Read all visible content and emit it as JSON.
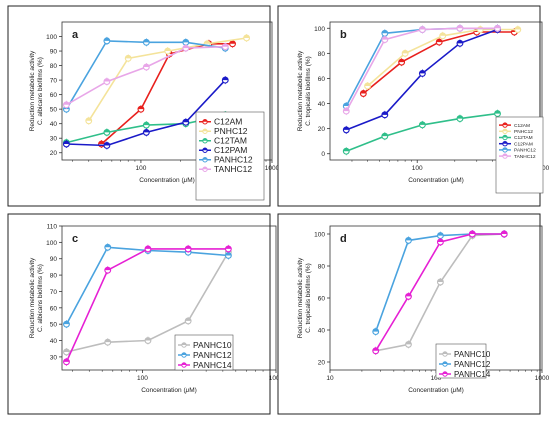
{
  "chart_data": [
    {
      "type": "line",
      "panel_label": "a",
      "xlabel_main": "Concentration (",
      "xlabel_mu": "μ",
      "xlabel_unit": "M)",
      "ylabel_line1": "Reduction metabolic activity",
      "ylabel_line2": "C. albicans biofilms (%)",
      "x_scale": "log",
      "xlim": [
        25,
        1000
      ],
      "ylim": [
        15,
        110
      ],
      "y_ticks": [
        20,
        30,
        40,
        50,
        60,
        70,
        80,
        90,
        100
      ],
      "x_ticks": [
        100,
        1000
      ],
      "x_tick_labels": [
        "100",
        "1000"
      ],
      "legend_position": "center-right",
      "series": [
        {
          "name": "C12AM",
          "color": "#e8201d",
          "x": [
            50,
            100,
            165,
            330,
            500
          ],
          "y": [
            26,
            50,
            88,
            95,
            95
          ]
        },
        {
          "name": "PNHC12",
          "color": "#f4e39a",
          "x": [
            40,
            80,
            160,
            320,
            640
          ],
          "y": [
            42,
            85,
            90,
            95,
            99
          ]
        },
        {
          "name": "C12TAM",
          "color": "#2fbf8a",
          "x": [
            27,
            55,
            110,
            220,
            440
          ],
          "y": [
            27,
            34,
            39,
            40,
            46
          ]
        },
        {
          "name": "C12PAM",
          "color": "#1a1ac8",
          "x": [
            27,
            55,
            110,
            220,
            440
          ],
          "y": [
            26,
            25,
            34,
            41,
            70
          ]
        },
        {
          "name": "PANHC12",
          "color": "#4aa3df",
          "x": [
            27,
            55,
            110,
            220,
            440
          ],
          "y": [
            50,
            97,
            96,
            96,
            92
          ]
        },
        {
          "name": "TANHC12",
          "color": "#e8a6e8",
          "x": [
            27,
            55,
            110,
            220,
            440
          ],
          "y": [
            53,
            69,
            79,
            92,
            93
          ]
        }
      ]
    },
    {
      "type": "line",
      "panel_label": "b",
      "xlabel_main": "Concentration (",
      "xlabel_mu": "μ",
      "xlabel_unit": "M)",
      "ylabel_line1": "Reduction metabolic activity",
      "ylabel_line2": "C. tropicalis biofilms (%)",
      "x_scale": "log",
      "xlim": [
        20,
        1000
      ],
      "ylim": [
        -5,
        105
      ],
      "y_ticks": [
        0,
        20,
        40,
        60,
        80,
        100
      ],
      "x_ticks": [
        100,
        1000
      ],
      "x_tick_labels": [
        "100",
        "1000"
      ],
      "legend_position": "bottom-right",
      "series": [
        {
          "name": "C12AM",
          "color": "#e8201d",
          "x": [
            37,
            75,
            150,
            300,
            600
          ],
          "y": [
            48,
            73,
            89,
            97,
            97
          ]
        },
        {
          "name": "PNHC12",
          "color": "#f4e39a",
          "x": [
            40,
            80,
            160,
            320,
            640
          ],
          "y": [
            54,
            80,
            94,
            99,
            99
          ]
        },
        {
          "name": "C12TAM",
          "color": "#2fbf8a",
          "x": [
            27,
            55,
            110,
            220,
            440
          ],
          "y": [
            2,
            14,
            23,
            28,
            32
          ]
        },
        {
          "name": "C12PAM",
          "color": "#1a1ac8",
          "x": [
            27,
            55,
            110,
            220,
            440
          ],
          "y": [
            19,
            31,
            64,
            88,
            99
          ]
        },
        {
          "name": "PANHC12",
          "color": "#4aa3df",
          "x": [
            27,
            55,
            110,
            220,
            440
          ],
          "y": [
            38,
            96,
            99,
            100,
            100
          ]
        },
        {
          "name": "TANHC12",
          "color": "#e8a6e8",
          "x": [
            27,
            55,
            110,
            220,
            440
          ],
          "y": [
            34,
            91,
            99,
            100,
            100
          ]
        }
      ]
    },
    {
      "type": "line",
      "panel_label": "c",
      "xlabel_main": "Concentration (",
      "xlabel_mu": "μ",
      "xlabel_unit": "M)",
      "ylabel_line1": "Reduction metabolic activity",
      "ylabel_line2": "C. albicans biofilms (%)",
      "x_scale": "log",
      "xlim": [
        25,
        1000
      ],
      "ylim": [
        22,
        110
      ],
      "y_ticks": [
        30,
        40,
        50,
        60,
        70,
        80,
        90,
        100,
        110
      ],
      "x_ticks": [
        100,
        1000
      ],
      "x_tick_labels": [
        "100",
        "1000"
      ],
      "legend_position": "bottom-right",
      "series": [
        {
          "name": "PANHC10",
          "color": "#bdbdbd",
          "x": [
            27,
            55,
            110,
            220,
            440
          ],
          "y": [
            33,
            39,
            40,
            52,
            94
          ]
        },
        {
          "name": "PANHC12",
          "color": "#4aa3df",
          "x": [
            27,
            55,
            110,
            220,
            440
          ],
          "y": [
            50,
            97,
            95,
            94,
            92
          ]
        },
        {
          "name": "PANHC14",
          "color": "#e620d4",
          "x": [
            27,
            55,
            110,
            220,
            440
          ],
          "y": [
            27,
            83,
            96,
            96,
            96
          ]
        }
      ]
    },
    {
      "type": "line",
      "panel_label": "d",
      "xlabel_main": "Concentration (",
      "xlabel_mu": "μ",
      "xlabel_unit": "M)",
      "ylabel_line1": "Reduction metabolic activity",
      "ylabel_line2": "C. tropicalis biofilms (%)",
      "x_scale": "log",
      "xlim": [
        10,
        1000
      ],
      "ylim": [
        15,
        105
      ],
      "y_ticks": [
        20,
        40,
        60,
        80,
        100
      ],
      "x_ticks": [
        10,
        100,
        1000
      ],
      "x_tick_labels": [
        "10",
        "100",
        "1000"
      ],
      "legend_position": "bottom-right",
      "series": [
        {
          "name": "PANHC10",
          "color": "#bdbdbd",
          "x": [
            27,
            55,
            110,
            220,
            440
          ],
          "y": [
            27,
            31,
            70,
            99,
            100
          ]
        },
        {
          "name": "PANHC12",
          "color": "#4aa3df",
          "x": [
            27,
            55,
            110,
            220,
            440
          ],
          "y": [
            39,
            96,
            99,
            100,
            100
          ]
        },
        {
          "name": "PANHC14",
          "color": "#e620d4",
          "x": [
            27,
            55,
            110,
            220,
            440
          ],
          "y": [
            27,
            61,
            95,
            100,
            100
          ]
        }
      ]
    }
  ]
}
